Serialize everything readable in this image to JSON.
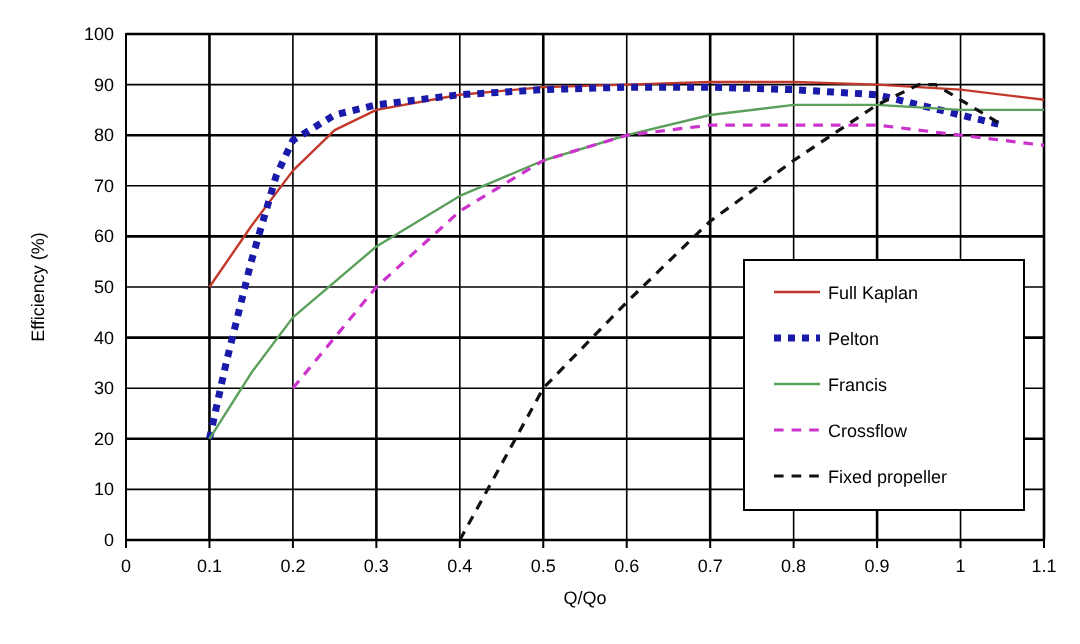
{
  "chart_data": {
    "type": "line",
    "xlabel": "Q/Qo",
    "ylabel": "Efficiency (%)",
    "xlim": [
      0,
      1.1
    ],
    "ylim": [
      0,
      100
    ],
    "xticks": [
      {
        "value": 0,
        "label": "0"
      },
      0.1,
      0.2,
      0.3,
      0.4,
      0.5,
      0.6,
      0.7,
      0.8,
      0.9,
      {
        "value": 1,
        "label": "1"
      },
      1.1
    ],
    "yticks": [
      0,
      10,
      20,
      30,
      40,
      50,
      60,
      70,
      80,
      90,
      100
    ],
    "grid": true,
    "legend": "bottom right",
    "marker": "none",
    "series": [
      {
        "name": "Full Kaplan",
        "color": "#c0392b",
        "line_style": "solid",
        "x": [
          0.1,
          0.15,
          0.2,
          0.25,
          0.3,
          0.4,
          0.5,
          0.6,
          0.7,
          0.8,
          0.9,
          1.0,
          1.1
        ],
        "values": [
          50,
          62,
          73,
          81,
          85,
          88,
          89.5,
          90,
          90.5,
          90.5,
          90,
          89,
          87
        ]
      },
      {
        "name": "Pelton",
        "color": "#1a1aaa",
        "line_style": "dotted",
        "x": [
          0.1,
          0.12,
          0.15,
          0.18,
          0.2,
          0.25,
          0.3,
          0.4,
          0.5,
          0.6,
          0.7,
          0.8,
          0.9,
          0.95,
          1.0,
          1.05
        ],
        "values": [
          20,
          35,
          55,
          72,
          79,
          84,
          86,
          88,
          89,
          89.5,
          89.5,
          89,
          88,
          86,
          84,
          82
        ]
      },
      {
        "name": "Francis",
        "color": "#5aa05a",
        "line_style": "solid",
        "x": [
          0.1,
          0.15,
          0.2,
          0.3,
          0.4,
          0.5,
          0.6,
          0.7,
          0.8,
          0.9,
          1.0,
          1.1
        ],
        "values": [
          20,
          33,
          44,
          58,
          68,
          75,
          80,
          84,
          86,
          86,
          85,
          85
        ]
      },
      {
        "name": "Crossflow",
        "color": "#cc33cc",
        "line_style": "dashed",
        "x": [
          0.2,
          0.25,
          0.3,
          0.4,
          0.5,
          0.6,
          0.7,
          0.8,
          0.9,
          1.0,
          1.1
        ],
        "values": [
          30,
          40,
          50,
          65,
          75,
          80,
          82,
          82,
          82,
          80,
          78
        ]
      },
      {
        "name": "Fixed propeller",
        "color": "#111111",
        "line_style": "dashed",
        "x": [
          0.4,
          0.45,
          0.5,
          0.6,
          0.7,
          0.8,
          0.9,
          0.95,
          0.97,
          1.0,
          1.05
        ],
        "values": [
          0,
          15,
          30,
          47,
          63,
          75,
          86,
          90,
          90,
          87,
          82
        ]
      }
    ]
  }
}
